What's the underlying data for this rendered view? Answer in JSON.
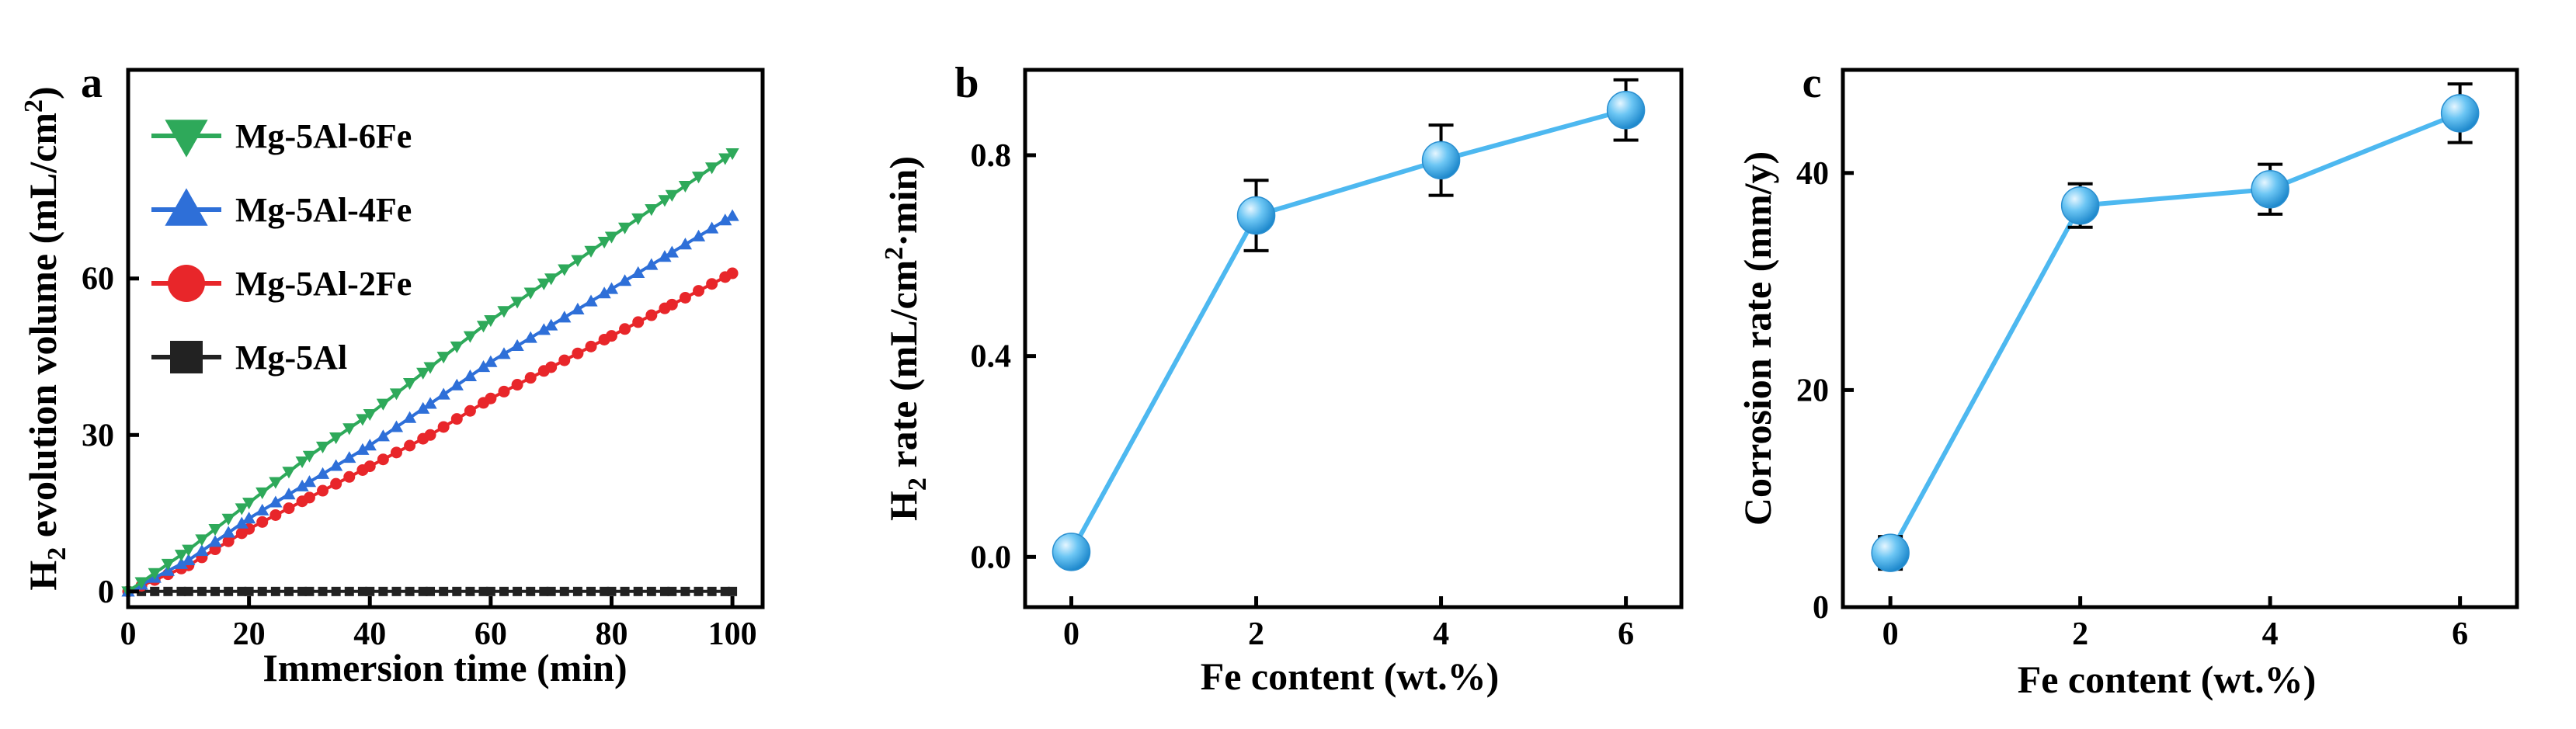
{
  "colors": {
    "green": "#2EA95A",
    "blue": "#2E6FD8",
    "red": "#E8262A",
    "black": "#222222",
    "line_light_blue": "#4DB8F0",
    "marker_light_blue": "#48B4EE"
  },
  "chart_data": [
    {
      "type": "line",
      "panel_label": "a",
      "xlabel": "Immersion time (min)",
      "ylabel": {
        "pre": "H",
        "sub": "2",
        "mid": " evolution volume (mL/cm",
        "sup": "2",
        "post": ")"
      },
      "xlim": [
        0,
        105
      ],
      "ylim": [
        -3,
        100
      ],
      "xticks": [
        0,
        20,
        40,
        60,
        80,
        100
      ],
      "yticks": [
        0,
        30,
        60
      ],
      "legend_position": "top-left",
      "series": [
        {
          "name": "Mg-5Al-6Fe",
          "marker": "triangle-down",
          "color_key": "green",
          "x": [
            0,
            10,
            20,
            30,
            40,
            50,
            60,
            70,
            80,
            90,
            100
          ],
          "y": [
            0,
            8,
            17,
            26,
            34,
            43,
            52,
            60,
            68,
            76,
            84
          ]
        },
        {
          "name": "Mg-5Al-4Fe",
          "marker": "triangle-up",
          "color_key": "blue",
          "x": [
            0,
            10,
            20,
            30,
            40,
            50,
            60,
            70,
            80,
            90,
            100
          ],
          "y": [
            0,
            6,
            14,
            21,
            28,
            36,
            44,
            51,
            58,
            65,
            72
          ]
        },
        {
          "name": "Mg-5Al-2Fe",
          "marker": "circle",
          "color_key": "red",
          "x": [
            0,
            10,
            20,
            30,
            40,
            50,
            60,
            70,
            80,
            90,
            100
          ],
          "y": [
            0,
            5,
            12,
            18,
            24,
            30,
            37,
            43,
            49,
            55,
            61
          ]
        },
        {
          "name": "Mg-5Al",
          "marker": "square",
          "color_key": "black",
          "x": [
            0,
            10,
            20,
            30,
            40,
            50,
            60,
            70,
            80,
            90,
            100
          ],
          "y": [
            0,
            0,
            0,
            0,
            0,
            0,
            0,
            0,
            0,
            0,
            0
          ]
        }
      ]
    },
    {
      "type": "line",
      "panel_label": "b",
      "xlabel": "Fe content (wt.%)",
      "ylabel": {
        "pre": "H",
        "sub": "2",
        "mid": "  rate (mL/cm",
        "sup": "2",
        "post": "·min)"
      },
      "xlim": [
        -0.5,
        6.6
      ],
      "ylim": [
        -0.1,
        0.97
      ],
      "xticks": [
        0,
        2,
        4,
        6
      ],
      "yticks": [
        0.0,
        0.4,
        0.8
      ],
      "ytick_labels": [
        "0.0",
        "0.4",
        "0.8"
      ],
      "series": [
        {
          "x": [
            0,
            2,
            4,
            6
          ],
          "y": [
            0.01,
            0.68,
            0.79,
            0.89
          ],
          "err": [
            0.02,
            0.07,
            0.07,
            0.06
          ]
        }
      ]
    },
    {
      "type": "line",
      "panel_label": "c",
      "xlabel": "Fe content (wt.%)",
      "ylabel": "Corrosion rate (mm/y)",
      "xlim": [
        -0.5,
        6.6
      ],
      "ylim": [
        0,
        49.5
      ],
      "xticks": [
        0,
        2,
        4,
        6
      ],
      "yticks": [
        0,
        20,
        40
      ],
      "series": [
        {
          "x": [
            0,
            2,
            4,
            6
          ],
          "y": [
            5,
            37,
            38.5,
            45.5
          ],
          "err": [
            1.5,
            2,
            2.3,
            2.7
          ]
        }
      ]
    }
  ]
}
